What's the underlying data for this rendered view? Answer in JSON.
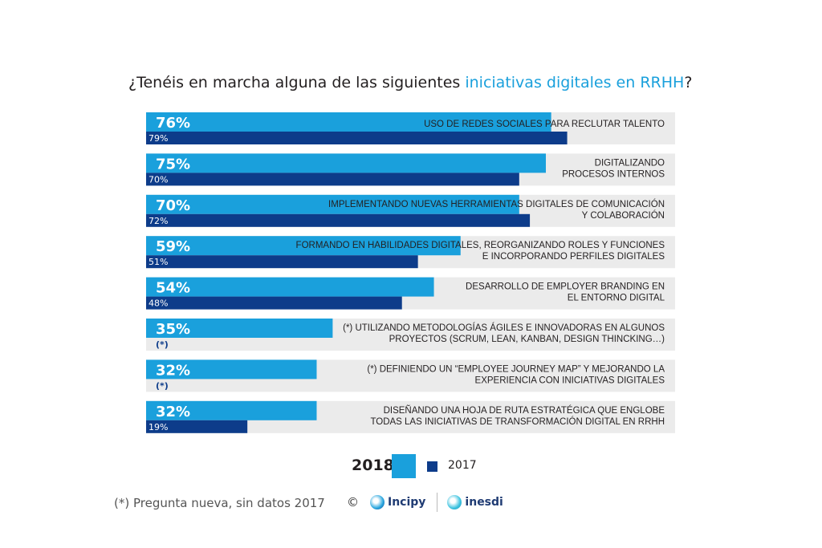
{
  "title": {
    "prefix": "¿Tenéis en marcha alguna de las siguientes ",
    "highlight": "iniciativas digitales en RRHH",
    "suffix": "?"
  },
  "colors": {
    "series_2018": "#1aa0dc",
    "series_2017": "#0d3c8a",
    "row_bg": "#ebebeb",
    "text": "#231f20"
  },
  "chart_data": {
    "type": "bar",
    "orientation": "horizontal",
    "x_range": [
      0,
      100
    ],
    "legend_placement": "bottom-center",
    "series": [
      {
        "name": "2018",
        "values": [
          76,
          75,
          70,
          59,
          54,
          35,
          32,
          32
        ]
      },
      {
        "name": "2017",
        "values": [
          79,
          70,
          72,
          51,
          48,
          null,
          null,
          19
        ]
      }
    ],
    "labels_2018": [
      "76%",
      "75%",
      "70%",
      "59%",
      "54%",
      "35%",
      "32%",
      "32%"
    ],
    "labels_2017": [
      "79%",
      "70%",
      "72%",
      "51%",
      "48%",
      "(*)",
      "(*)",
      "19%"
    ],
    "categories": [
      [
        "USO DE REDES SOCIALES PARA RECLUTAR TALENTO"
      ],
      [
        "DIGITALIZANDO",
        "PROCESOS INTERNOS"
      ],
      [
        "IMPLEMENTANDO NUEVAS HERRAMIENTAS DIGITALES DE COMUNICACIÓN",
        "Y COLABORACIÓN"
      ],
      [
        "FORMANDO EN HABILIDADES DIGITALES, REORGANIZANDO ROLES Y FUNCIONES",
        "E INCORPORANDO PERFILES DIGITALES"
      ],
      [
        "DESARROLLO DE EMPLOYER BRANDING EN",
        "EL ENTORNO DIGITAL"
      ],
      [
        "(*) UTILIZANDO METODOLOGÍAS ÁGILES E INNOVADORAS EN ALGUNOS",
        "PROYECTOS (SCRUM, LEAN, KANBAN, DESIGN THINCKING…)"
      ],
      [
        "(*) DEFINIENDO UN “EMPLOYEE JOURNEY MAP” Y MEJORANDO LA",
        "EXPERIENCIA CON INICIATIVAS DIGITALES"
      ],
      [
        "DISEÑANDO UNA HOJA DE RUTA ESTRATÉGICA QUE ENGLOBE",
        "TODAS LAS INICIATIVAS DE TRANSFORMACIÓN DIGITAL EN RRHH"
      ]
    ]
  },
  "legend": {
    "label_2018": "2018",
    "label_2017": "2017"
  },
  "footnote": "(*) Pregunta nueva, sin datos 2017",
  "logos": {
    "copyright": "©",
    "incipy": "Incipy",
    "inesdi": "inesdi"
  }
}
